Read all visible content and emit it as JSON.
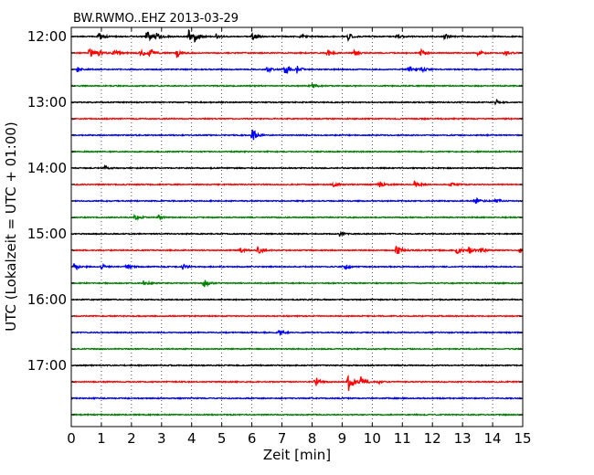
{
  "chart_data": {
    "type": "line",
    "title": "BW.RWMO..EHZ 2013-03-29",
    "xlabel": "Zeit  [min]",
    "ylabel": "UTC (Lokalzeit = UTC + 01:00)",
    "xlim": [
      0,
      15
    ],
    "x_ticks": [
      "0",
      "1",
      "2",
      "3",
      "4",
      "5",
      "6",
      "7",
      "8",
      "9",
      "10",
      "11",
      "12",
      "13",
      "14",
      "15"
    ],
    "y_ticks": [
      "12:00",
      "13:00",
      "14:00",
      "15:00",
      "16:00",
      "17:00"
    ],
    "grid": true,
    "colors": [
      "#000000",
      "#ff0000",
      "#0000ff",
      "#008000"
    ],
    "traces": [
      {
        "start": "12:00",
        "color": "#000000",
        "events": [
          [
            0.9,
            5
          ],
          [
            2.5,
            7
          ],
          [
            2.8,
            4
          ],
          [
            3.9,
            7
          ],
          [
            4.1,
            5
          ],
          [
            4.8,
            3
          ],
          [
            6.0,
            4
          ],
          [
            7.6,
            3
          ],
          [
            9.2,
            4
          ],
          [
            10.8,
            3
          ],
          [
            12.4,
            3
          ]
        ]
      },
      {
        "start": "12:15",
        "color": "#ff0000",
        "events": [
          [
            0.6,
            8
          ],
          [
            0.9,
            6
          ],
          [
            1.4,
            4
          ],
          [
            2.3,
            5
          ],
          [
            2.6,
            5
          ],
          [
            3.5,
            6
          ],
          [
            8.5,
            4
          ],
          [
            9.4,
            3
          ],
          [
            11.6,
            4
          ],
          [
            13.5,
            3
          ],
          [
            14.4,
            3
          ]
        ]
      },
      {
        "start": "12:30",
        "color": "#0000ff",
        "events": [
          [
            0.2,
            3
          ],
          [
            6.5,
            3
          ],
          [
            7.1,
            7
          ],
          [
            7.5,
            4
          ],
          [
            11.2,
            5
          ],
          [
            11.6,
            3
          ]
        ]
      },
      {
        "start": "12:45",
        "color": "#008000",
        "events": [
          [
            8.0,
            3
          ]
        ]
      },
      {
        "start": "13:00",
        "color": "#000000",
        "events": [
          [
            14.1,
            3
          ]
        ]
      },
      {
        "start": "13:15",
        "color": "#ff0000",
        "events": []
      },
      {
        "start": "13:30",
        "color": "#0000ff",
        "events": [
          [
            6.0,
            8
          ]
        ]
      },
      {
        "start": "13:45",
        "color": "#008000",
        "events": []
      },
      {
        "start": "14:00",
        "color": "#000000",
        "events": [
          [
            1.1,
            3
          ]
        ]
      },
      {
        "start": "14:15",
        "color": "#ff0000",
        "events": [
          [
            8.7,
            3
          ],
          [
            10.2,
            4
          ],
          [
            11.4,
            4
          ],
          [
            12.6,
            3
          ]
        ]
      },
      {
        "start": "14:30",
        "color": "#0000ff",
        "events": [
          [
            13.4,
            5
          ],
          [
            14.1,
            3
          ]
        ]
      },
      {
        "start": "14:45",
        "color": "#008000",
        "events": [
          [
            2.1,
            3
          ],
          [
            2.9,
            2
          ]
        ]
      },
      {
        "start": "15:00",
        "color": "#000000",
        "events": [
          [
            8.9,
            3
          ]
        ]
      },
      {
        "start": "15:15",
        "color": "#ff0000",
        "events": [
          [
            5.6,
            3
          ],
          [
            6.2,
            4
          ],
          [
            10.8,
            7
          ],
          [
            12.8,
            4
          ],
          [
            13.2,
            5
          ],
          [
            13.6,
            3
          ],
          [
            14.9,
            3
          ]
        ]
      },
      {
        "start": "15:30",
        "color": "#0000ff",
        "events": [
          [
            0.1,
            5
          ],
          [
            1.0,
            3
          ],
          [
            1.8,
            3
          ],
          [
            3.7,
            3
          ],
          [
            9.1,
            3
          ]
        ]
      },
      {
        "start": "15:45",
        "color": "#008000",
        "events": [
          [
            2.4,
            3
          ],
          [
            4.4,
            5
          ]
        ]
      },
      {
        "start": "16:00",
        "color": "#000000",
        "events": []
      },
      {
        "start": "16:15",
        "color": "#ff0000",
        "events": []
      },
      {
        "start": "16:30",
        "color": "#0000ff",
        "events": [
          [
            6.9,
            3
          ]
        ]
      },
      {
        "start": "16:45",
        "color": "#008000",
        "events": []
      },
      {
        "start": "17:00",
        "color": "#000000",
        "events": []
      },
      {
        "start": "17:15",
        "color": "#ff0000",
        "events": [
          [
            8.1,
            6
          ],
          [
            9.2,
            11
          ],
          [
            9.6,
            7
          ],
          [
            10.2,
            3
          ]
        ]
      },
      {
        "start": "17:30",
        "color": "#0000ff",
        "events": []
      },
      {
        "start": "17:45",
        "color": "#008000",
        "events": []
      }
    ]
  }
}
